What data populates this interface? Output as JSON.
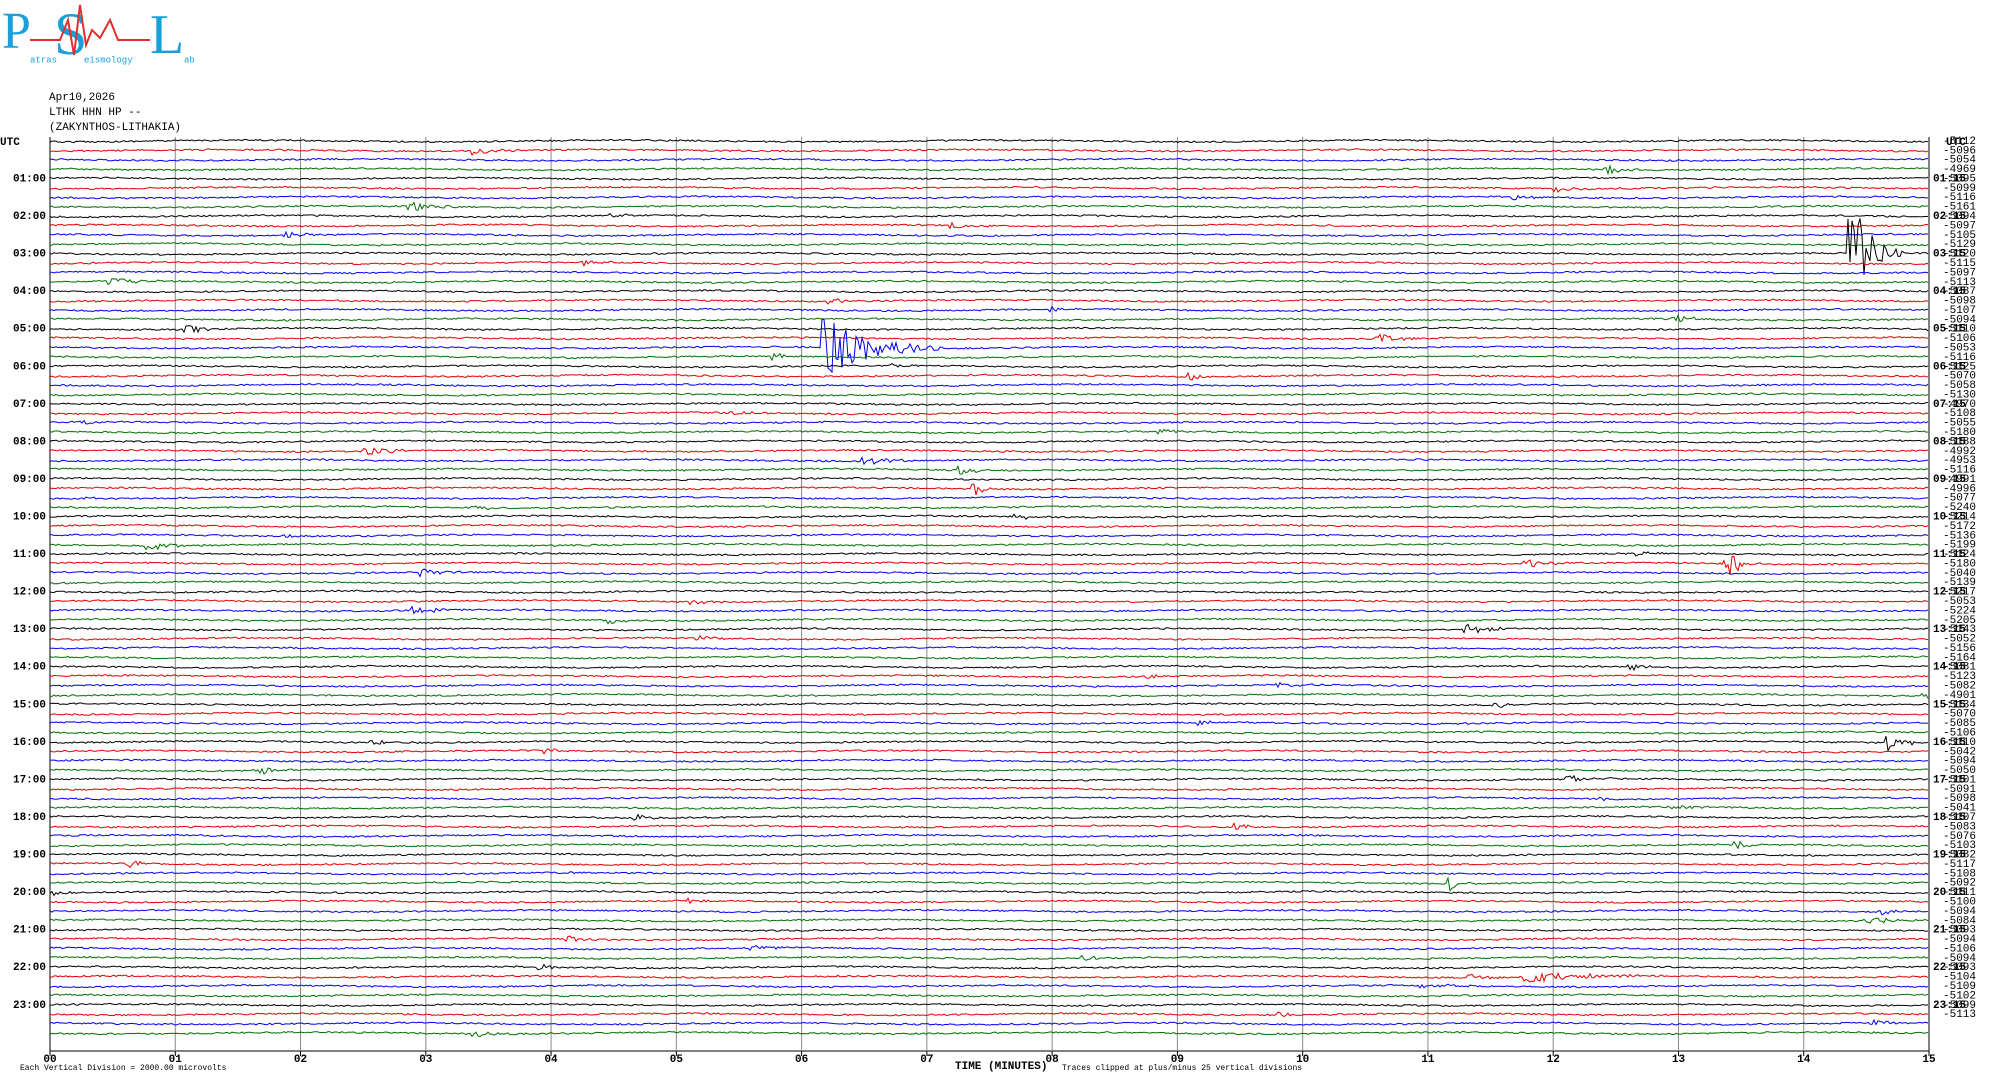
{
  "logo": {
    "parts": [
      "P",
      "atras",
      "S",
      "eismology",
      "L",
      "ab"
    ]
  },
  "header": {
    "date": "Apr10,2026",
    "station": "LTHK HHN HP --",
    "location": "(ZAKYNTHOS-LITHAKIA)"
  },
  "left_axis": {
    "title": "UTC",
    "labels": [
      "01:00",
      "02:00",
      "03:00",
      "04:00",
      "05:00",
      "06:00",
      "07:00",
      "08:00",
      "09:00",
      "10:00",
      "11:00",
      "12:00",
      "13:00",
      "14:00",
      "15:00",
      "16:00",
      "17:00",
      "18:00",
      "19:00",
      "20:00",
      "21:00",
      "22:00",
      "23:00"
    ]
  },
  "right_axis": {
    "title": "UTC",
    "labels": [
      "01:15",
      "02:15",
      "03:15",
      "04:15",
      "05:15",
      "06:15",
      "07:15",
      "08:15",
      "09:15",
      "10:15",
      "11:15",
      "12:15",
      "13:15",
      "14:15",
      "15:15",
      "16:15",
      "17:15",
      "18:15",
      "19:15",
      "20:15",
      "21:15",
      "22:15",
      "23:15"
    ]
  },
  "trace_offsets": [
    -5112,
    -5096,
    -5054,
    -4969,
    -5095,
    -5099,
    -5116,
    -5161,
    -5094,
    -5097,
    -5105,
    -5129,
    -5120,
    -5115,
    -5097,
    -5113,
    -5087,
    -5098,
    -5107,
    -5094,
    -5110,
    -5106,
    -5053,
    -5116,
    -5125,
    -5070,
    -5058,
    -5130,
    -4970,
    -5108,
    -5055,
    -5180,
    -5188,
    -4992,
    -4953,
    -5116,
    -4991,
    -4996,
    -5077,
    -5240,
    -5214,
    -5172,
    -5136,
    -5199,
    -5124,
    -5180,
    -5040,
    -5139,
    -5217,
    -5053,
    -5224,
    -5205,
    -5143,
    -5052,
    -5156,
    -5164,
    -5081,
    -5123,
    -5082,
    -4901,
    -5134,
    -5070,
    -5085,
    -5106,
    -5110,
    -5042,
    -5094,
    -5050,
    -5101,
    -5091,
    -5098,
    -5041,
    -5107,
    -5083,
    -5076,
    -5103,
    -5082,
    -5117,
    -5108,
    -5092,
    -5111,
    -5100,
    -5094,
    -5084,
    -5093,
    -5094,
    -5106,
    -5094,
    -5093,
    -5104,
    -5109,
    -5102,
    -5099,
    -5113
  ],
  "x_axis": {
    "title": "TIME (MINUTES)",
    "labels": [
      "00",
      "01",
      "02",
      "03",
      "04",
      "05",
      "06",
      "07",
      "08",
      "09",
      "10",
      "11",
      "12",
      "13",
      "14",
      "15"
    ]
  },
  "footer": {
    "scale_note": "Each Vertical Division = 2000.00 microvolts",
    "clip_note": "Traces clipped at plus/minus 25 vertical divisions"
  }
}
